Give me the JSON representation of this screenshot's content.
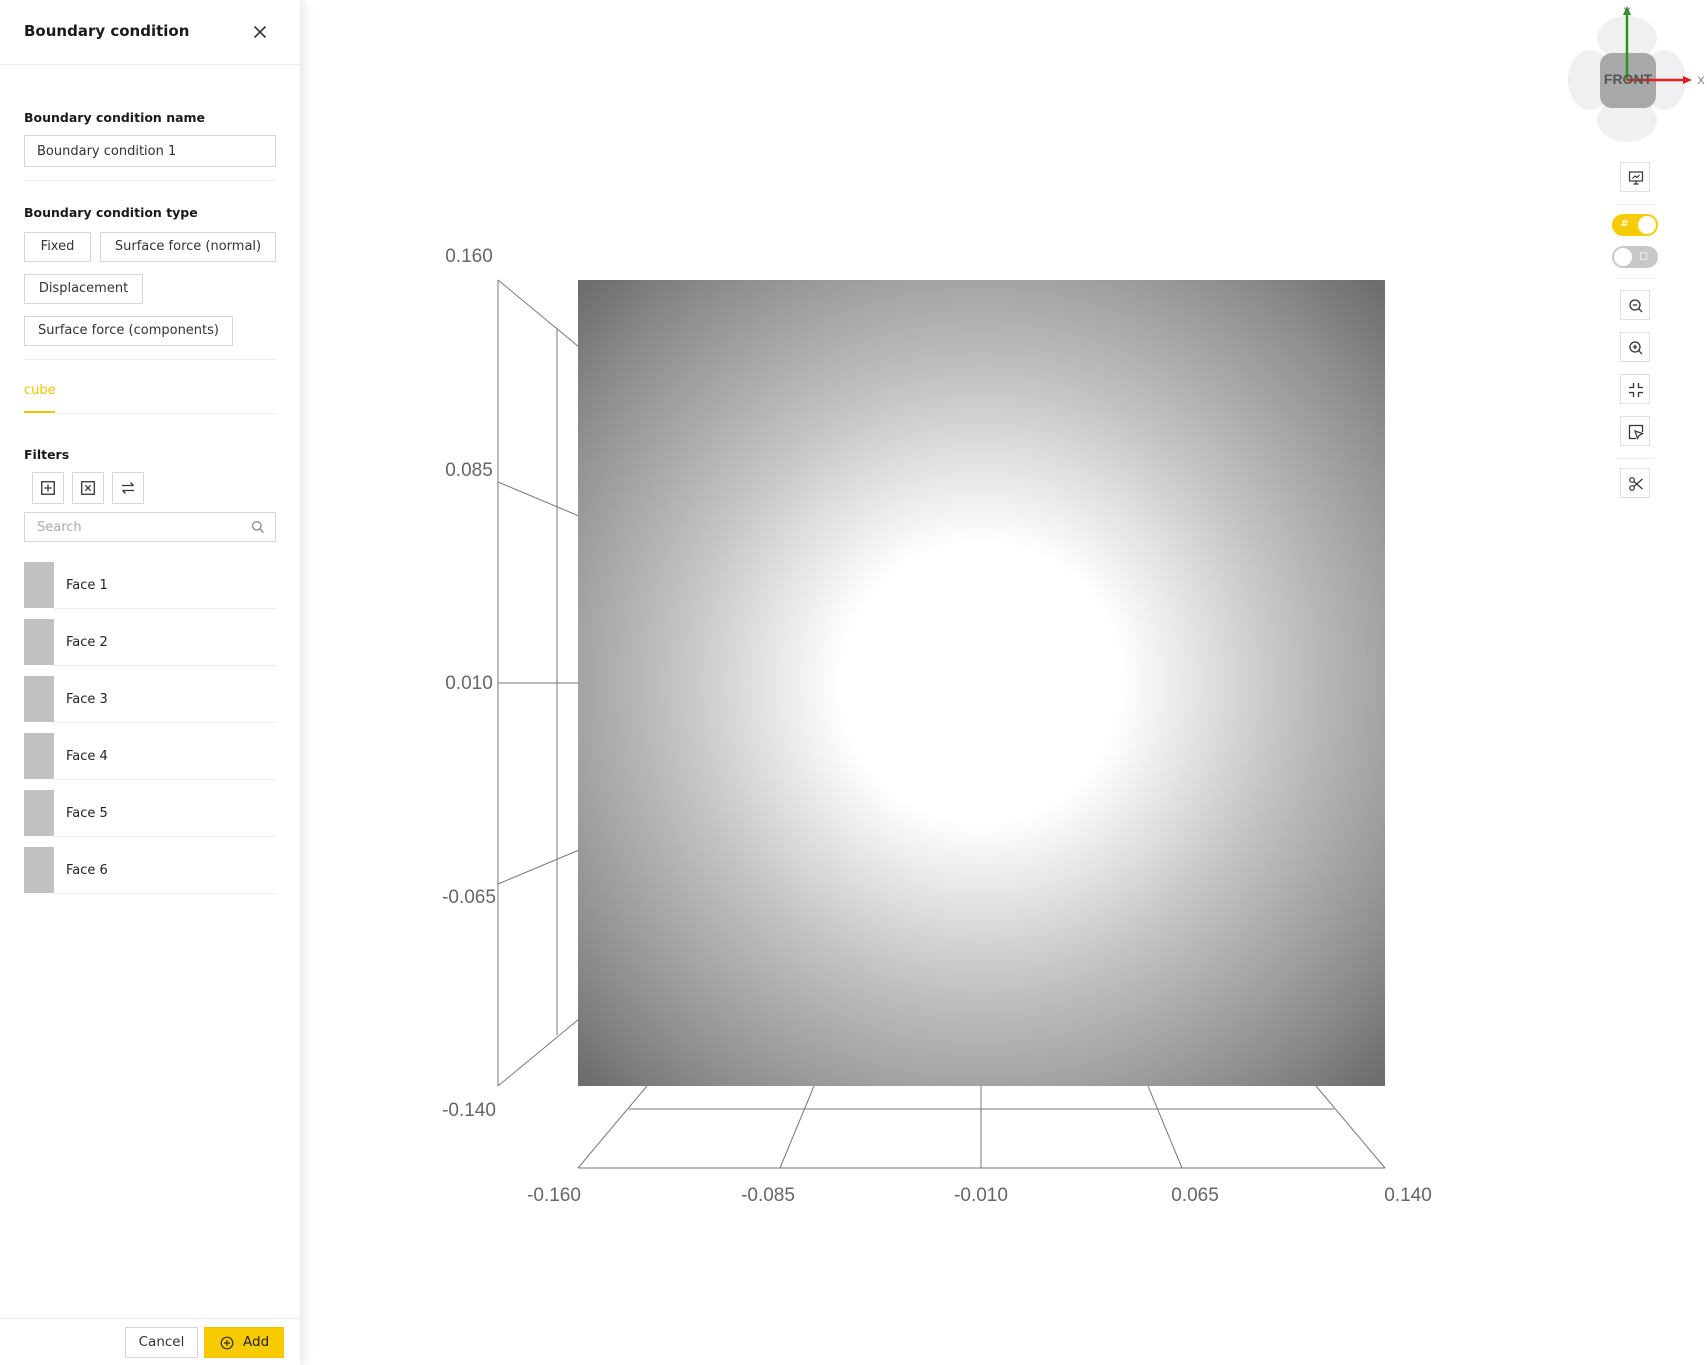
{
  "panel": {
    "title": "Boundary condition",
    "name_label": "Boundary condition name",
    "name_value": "Boundary condition 1",
    "type_label": "Boundary condition type",
    "types": [
      "Fixed",
      "Surface force (normal)",
      "Displacement",
      "Surface force (components)"
    ],
    "tab": "cube",
    "filters_label": "Filters",
    "search_placeholder": "Search",
    "faces": [
      "Face 1",
      "Face 2",
      "Face 3",
      "Face 4",
      "Face 5",
      "Face 6"
    ],
    "cancel_label": "Cancel",
    "add_label": "Add"
  },
  "viewer": {
    "y_ticks": [
      "0.160",
      "0.085",
      "0.010",
      "-0.065",
      "-0.140"
    ],
    "x_ticks": [
      "-0.160",
      "-0.085",
      "-0.010",
      "0.065",
      "0.140"
    ],
    "gizmo": {
      "face": "FRONT",
      "x_axis": "X",
      "y_axis": "Y"
    },
    "toggles": {
      "grid": true,
      "second": false
    },
    "colors": {
      "accent": "#f6cb00",
      "x_axis": "#e02020",
      "y_axis": "#1a9a1a"
    }
  }
}
